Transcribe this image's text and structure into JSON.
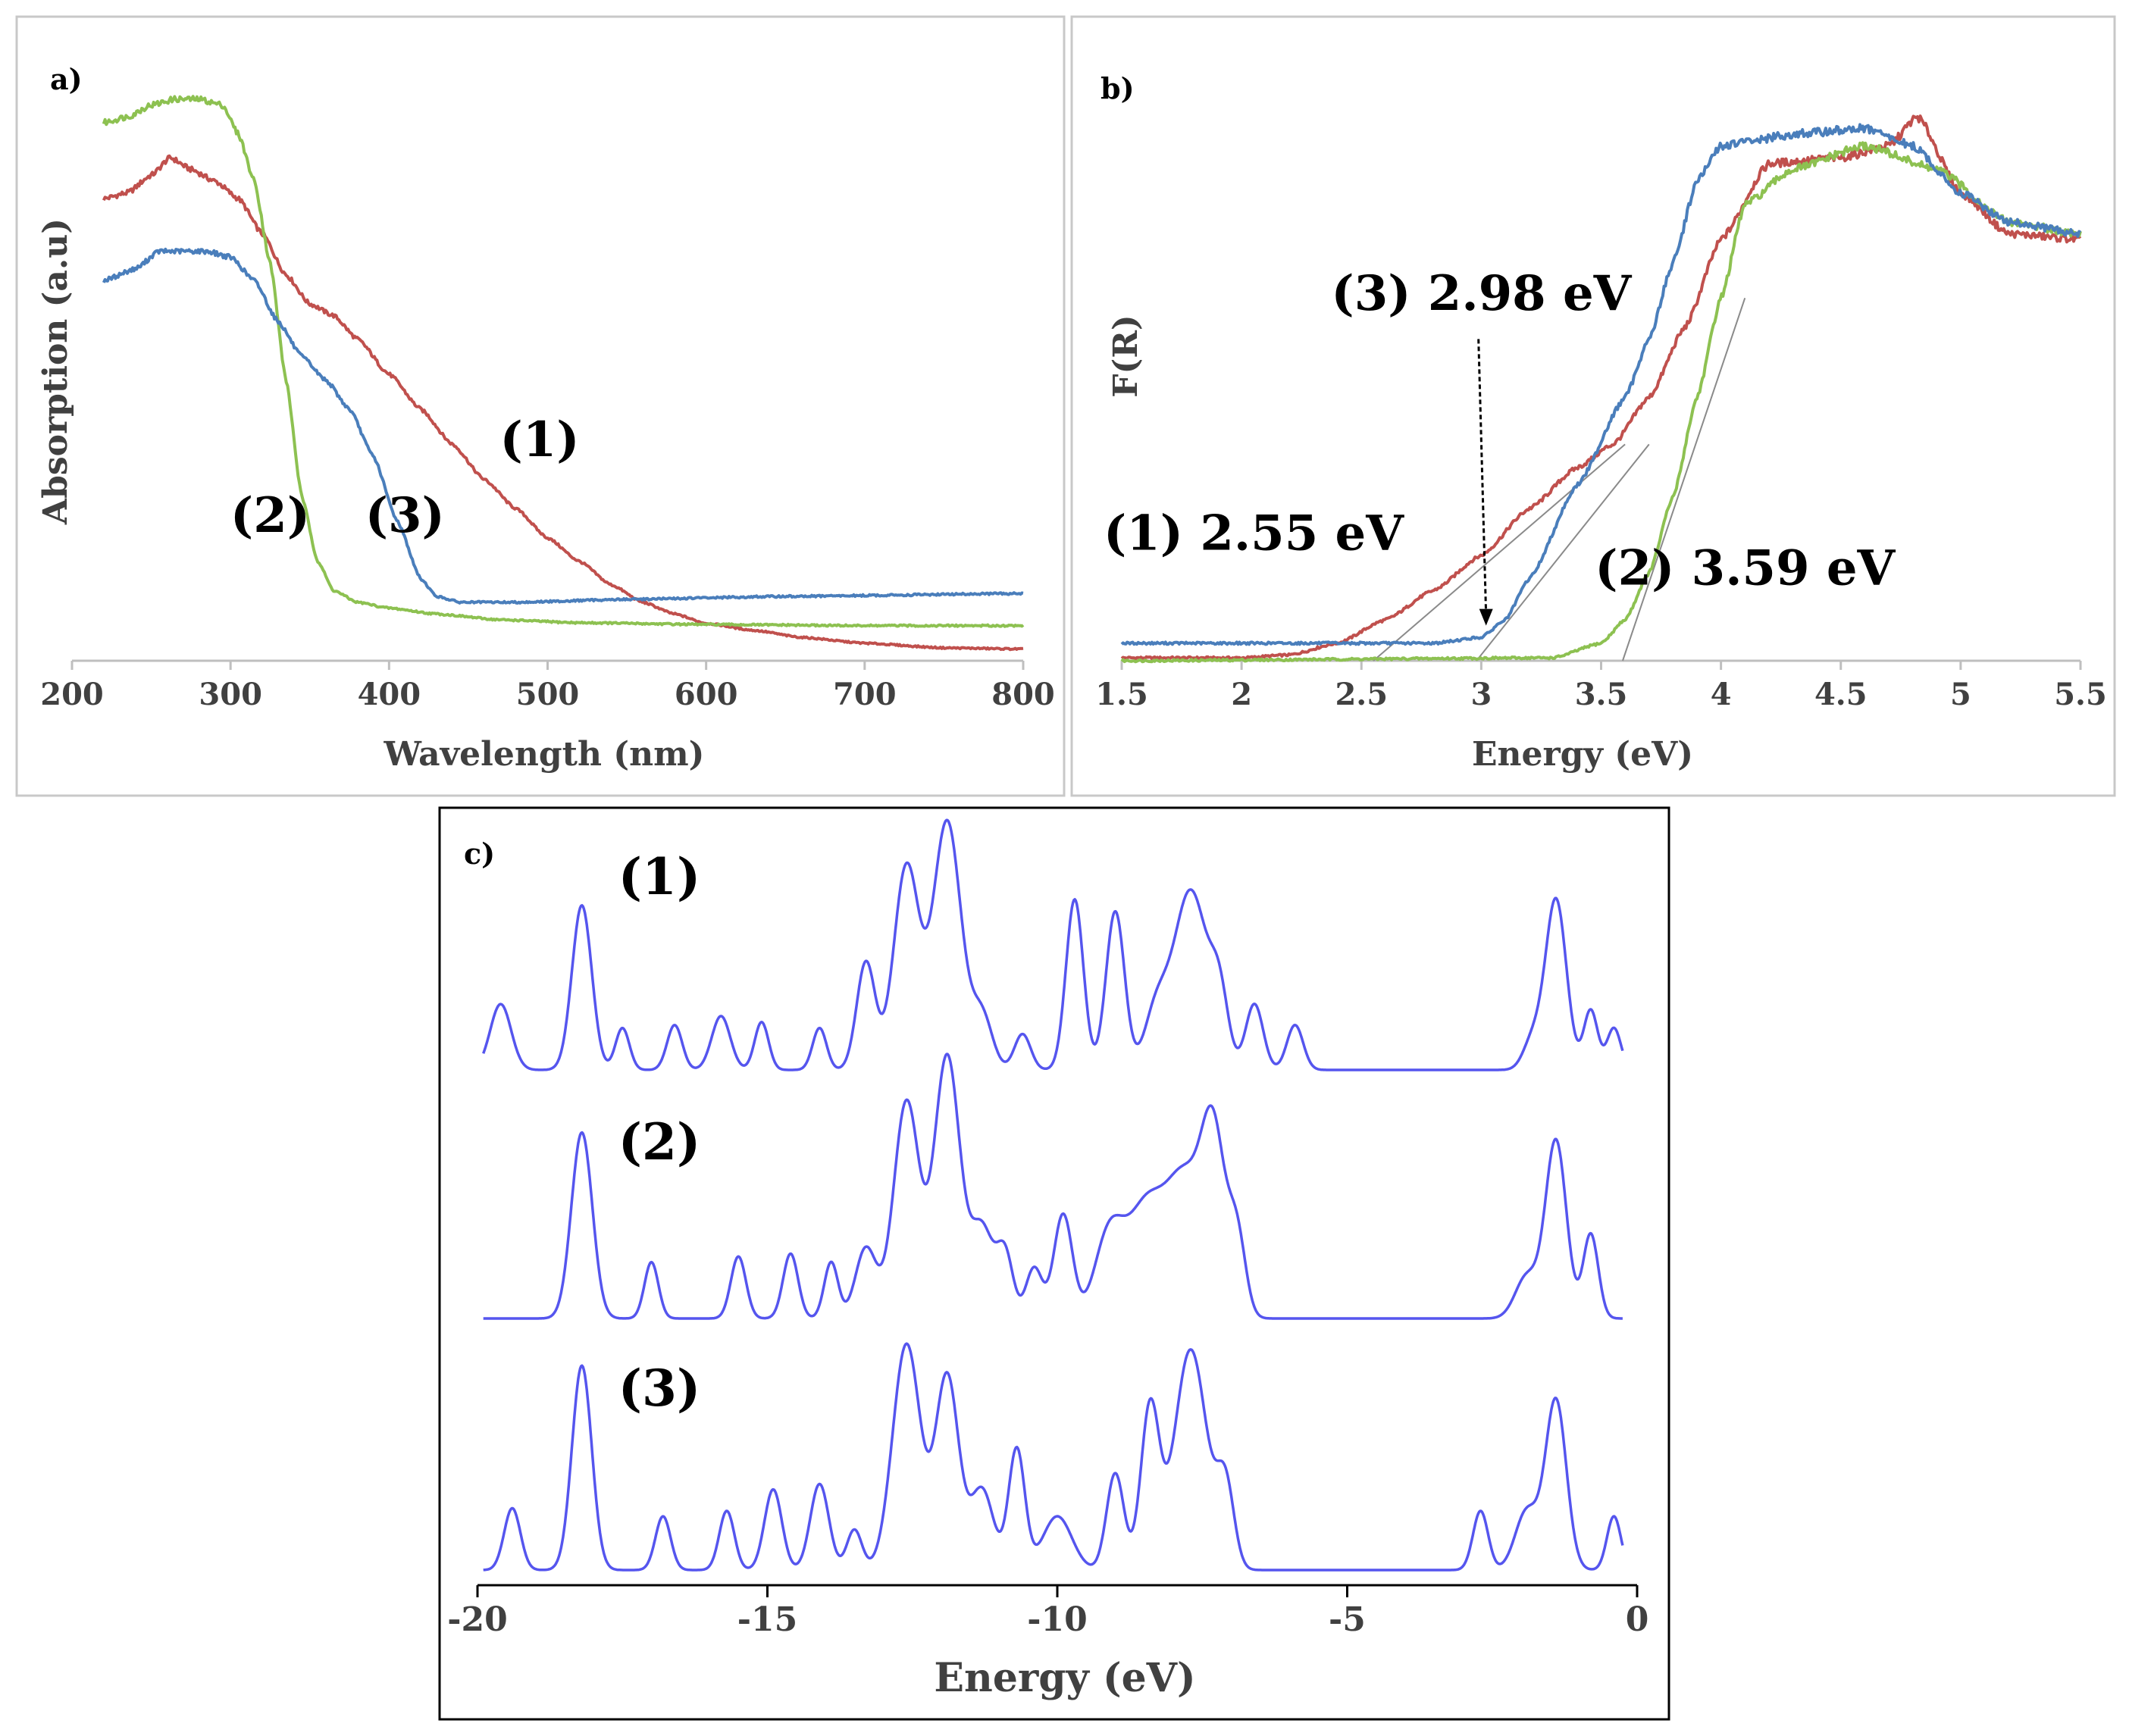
{
  "colors": {
    "curve_1": "#c0504d",
    "curve_2": "#8dc151",
    "curve_3": "#4a7ebb",
    "dos": "#5555ee",
    "axis": "#bfbfbf",
    "text": "#404040"
  },
  "chart_data": [
    {
      "id": "a",
      "type": "line",
      "panel_label": "a)",
      "xlabel": "Wavelength (nm)",
      "ylabel": "Absorption (a.u)",
      "xlim": [
        200,
        800
      ],
      "ylim": [
        0,
        1.0
      ],
      "xticks": [
        200,
        300,
        400,
        500,
        600,
        700,
        800
      ],
      "tick_labels": [
        "200",
        "300",
        "400",
        "500",
        "600",
        "700",
        "800"
      ],
      "series": [
        {
          "name": "(1)",
          "color": "#c0504d",
          "x": [
            220,
            235,
            250,
            262,
            275,
            290,
            305,
            320,
            335,
            350,
            365,
            380,
            400,
            420,
            440,
            460,
            480,
            500,
            520,
            540,
            560,
            580,
            600,
            630,
            660,
            700,
            750,
            800
          ],
          "y": [
            0.79,
            0.8,
            0.83,
            0.86,
            0.84,
            0.82,
            0.79,
            0.73,
            0.66,
            0.61,
            0.59,
            0.55,
            0.49,
            0.43,
            0.37,
            0.31,
            0.26,
            0.21,
            0.17,
            0.13,
            0.1,
            0.08,
            0.064,
            0.052,
            0.04,
            0.03,
            0.022,
            0.02
          ]
        },
        {
          "name": "(2)",
          "color": "#8dc151",
          "x": [
            220,
            235,
            250,
            265,
            280,
            295,
            305,
            315,
            325,
            335,
            345,
            355,
            365,
            380,
            400,
            430,
            470,
            520,
            600,
            700,
            800
          ],
          "y": [
            0.92,
            0.93,
            0.95,
            0.96,
            0.96,
            0.95,
            0.9,
            0.82,
            0.68,
            0.48,
            0.28,
            0.17,
            0.12,
            0.1,
            0.09,
            0.08,
            0.07,
            0.065,
            0.062,
            0.06,
            0.06
          ]
        },
        {
          "name": "(3)",
          "color": "#4a7ebb",
          "x": [
            220,
            240,
            255,
            270,
            285,
            300,
            315,
            330,
            345,
            360,
            375,
            390,
            405,
            420,
            430,
            445,
            480,
            550,
            650,
            800
          ],
          "y": [
            0.65,
            0.67,
            0.7,
            0.7,
            0.7,
            0.69,
            0.65,
            0.58,
            0.52,
            0.48,
            0.43,
            0.35,
            0.24,
            0.14,
            0.11,
            0.1,
            0.1,
            0.105,
            0.11,
            0.115
          ]
        }
      ],
      "annotations": [
        {
          "text": "(1)",
          "x": 495,
          "y": 0.35
        },
        {
          "text": "(2)",
          "x": 325,
          "y": 0.22
        },
        {
          "text": "(3)",
          "x": 410,
          "y": 0.22
        }
      ]
    },
    {
      "id": "b",
      "type": "line",
      "panel_label": "b)",
      "xlabel": "Energy (eV)",
      "ylabel": "F(R)",
      "xlim": [
        1.5,
        5.5
      ],
      "ylim": [
        0,
        1.0
      ],
      "xticks": [
        1.5,
        2,
        2.5,
        3,
        3.5,
        4,
        4.5,
        5,
        5.5
      ],
      "tick_labels": [
        "1.5",
        "2",
        "2.5",
        "3",
        "3.5",
        "4",
        "4.5",
        "5",
        "5.5"
      ],
      "series": [
        {
          "name": "(1)",
          "color": "#c0504d",
          "x": [
            1.5,
            2.0,
            2.2,
            2.4,
            2.6,
            2.8,
            3.0,
            3.2,
            3.4,
            3.55,
            3.7,
            3.85,
            4.0,
            4.2,
            4.5,
            4.7,
            4.82,
            5.0,
            5.2,
            5.5
          ],
          "y": [
            0.005,
            0.005,
            0.01,
            0.03,
            0.07,
            0.12,
            0.18,
            0.26,
            0.33,
            0.37,
            0.45,
            0.57,
            0.72,
            0.85,
            0.86,
            0.88,
            0.93,
            0.8,
            0.73,
            0.72
          ]
        },
        {
          "name": "(2)",
          "color": "#8dc151",
          "x": [
            1.5,
            3.3,
            3.5,
            3.6,
            3.7,
            3.8,
            3.9,
            4.0,
            4.1,
            4.3,
            4.6,
            4.9,
            5.2,
            5.5
          ],
          "y": [
            0.0,
            0.005,
            0.03,
            0.07,
            0.15,
            0.28,
            0.45,
            0.62,
            0.78,
            0.84,
            0.88,
            0.84,
            0.75,
            0.73
          ]
        },
        {
          "name": "(3)",
          "color": "#4a7ebb",
          "x": [
            1.5,
            2.8,
            3.0,
            3.1,
            3.2,
            3.4,
            3.6,
            3.7,
            3.8,
            3.9,
            4.0,
            4.15,
            4.3,
            4.6,
            4.8,
            5.0,
            5.2,
            5.5
          ],
          "y": [
            0.03,
            0.03,
            0.04,
            0.07,
            0.14,
            0.3,
            0.45,
            0.55,
            0.68,
            0.82,
            0.88,
            0.89,
            0.9,
            0.91,
            0.88,
            0.8,
            0.75,
            0.73
          ]
        }
      ],
      "tangents": [
        {
          "name": "(1)",
          "x": [
            2.55,
            3.6
          ],
          "y": [
            0.0,
            0.37
          ]
        },
        {
          "name": "(3)",
          "x": [
            2.98,
            3.7
          ],
          "y": [
            0.0,
            0.37
          ]
        },
        {
          "name": "(2)",
          "x": [
            3.59,
            4.1
          ],
          "y": [
            0.0,
            0.62
          ]
        }
      ],
      "annotations": [
        {
          "text": "(3) 2.98 eV",
          "x": 3.0,
          "y": 0.6
        },
        {
          "text": "(1) 2.55 eV",
          "x": 2.05,
          "y": 0.19
        },
        {
          "text": "(2) 3.59 eV",
          "x": 4.1,
          "y": 0.13
        }
      ]
    },
    {
      "id": "c",
      "type": "line",
      "panel_label": "c)",
      "xlabel": "Energy (eV)",
      "xlim": [
        -20,
        0
      ],
      "xticks": [
        -20,
        -15,
        -10,
        -5,
        0
      ],
      "tick_labels": [
        "-20",
        "-15",
        "-10",
        "-5",
        "0"
      ],
      "series": [
        {
          "name": "(1)",
          "color": "#5555ee",
          "peaks": [
            [
              -19.6,
              0.22,
              0.18
            ],
            [
              -18.2,
              0.55,
              0.17
            ],
            [
              -17.5,
              0.14,
              0.12
            ],
            [
              -16.6,
              0.15,
              0.13
            ],
            [
              -15.8,
              0.18,
              0.16
            ],
            [
              -15.1,
              0.16,
              0.12
            ],
            [
              -14.1,
              0.14,
              0.12
            ],
            [
              -13.3,
              0.36,
              0.16
            ],
            [
              -12.6,
              0.68,
              0.22
            ],
            [
              -11.9,
              0.83,
              0.24
            ],
            [
              -11.3,
              0.18,
              0.18
            ],
            [
              -10.6,
              0.12,
              0.14
            ],
            [
              -9.7,
              0.57,
              0.15
            ],
            [
              -9.0,
              0.53,
              0.16
            ],
            [
              -8.3,
              0.18,
              0.2
            ],
            [
              -7.7,
              0.6,
              0.3
            ],
            [
              -7.2,
              0.2,
              0.15
            ],
            [
              -6.6,
              0.22,
              0.15
            ],
            [
              -5.9,
              0.15,
              0.14
            ],
            [
              -1.8,
              0.1,
              0.16
            ],
            [
              -1.4,
              0.57,
              0.18
            ],
            [
              -0.8,
              0.2,
              0.12
            ],
            [
              -0.4,
              0.14,
              0.12
            ]
          ]
        },
        {
          "name": "(2)",
          "color": "#5555ee",
          "peaks": [
            [
              -18.2,
              0.66,
              0.18
            ],
            [
              -17.0,
              0.2,
              0.12
            ],
            [
              -15.5,
              0.22,
              0.13
            ],
            [
              -14.6,
              0.23,
              0.13
            ],
            [
              -13.9,
              0.2,
              0.12
            ],
            [
              -13.3,
              0.25,
              0.18
            ],
            [
              -12.6,
              0.77,
              0.22
            ],
            [
              -11.9,
              0.93,
              0.22
            ],
            [
              -11.3,
              0.32,
              0.2
            ],
            [
              -10.9,
              0.22,
              0.14
            ],
            [
              -10.4,
              0.18,
              0.14
            ],
            [
              -9.9,
              0.37,
              0.16
            ],
            [
              -9.1,
              0.3,
              0.25
            ],
            [
              -8.5,
              0.35,
              0.3
            ],
            [
              -7.8,
              0.5,
              0.35
            ],
            [
              -7.3,
              0.55,
              0.2
            ],
            [
              -6.9,
              0.28,
              0.15
            ],
            [
              -1.9,
              0.15,
              0.2
            ],
            [
              -1.4,
              0.63,
              0.18
            ],
            [
              -0.8,
              0.3,
              0.13
            ]
          ]
        },
        {
          "name": "(3)",
          "color": "#5555ee",
          "peaks": [
            [
              -19.4,
              0.23,
              0.14
            ],
            [
              -18.2,
              0.76,
              0.17
            ],
            [
              -16.8,
              0.2,
              0.13
            ],
            [
              -15.7,
              0.22,
              0.13
            ],
            [
              -14.9,
              0.3,
              0.15
            ],
            [
              -14.1,
              0.32,
              0.16
            ],
            [
              -13.5,
              0.15,
              0.13
            ],
            [
              -12.6,
              0.84,
              0.24
            ],
            [
              -11.9,
              0.72,
              0.2
            ],
            [
              -11.3,
              0.3,
              0.2
            ],
            [
              -10.7,
              0.45,
              0.14
            ],
            [
              -10.0,
              0.2,
              0.25
            ],
            [
              -9.0,
              0.36,
              0.15
            ],
            [
              -8.4,
              0.6,
              0.16
            ],
            [
              -7.7,
              0.82,
              0.28
            ],
            [
              -7.1,
              0.3,
              0.15
            ],
            [
              -2.7,
              0.22,
              0.13
            ],
            [
              -1.9,
              0.22,
              0.2
            ],
            [
              -1.4,
              0.63,
              0.18
            ],
            [
              -0.4,
              0.2,
              0.12
            ]
          ]
        }
      ],
      "annotations": [
        {
          "text": "(1)",
          "series": 0
        },
        {
          "text": "(2)",
          "series": 1
        },
        {
          "text": "(3)",
          "series": 2
        }
      ]
    }
  ]
}
